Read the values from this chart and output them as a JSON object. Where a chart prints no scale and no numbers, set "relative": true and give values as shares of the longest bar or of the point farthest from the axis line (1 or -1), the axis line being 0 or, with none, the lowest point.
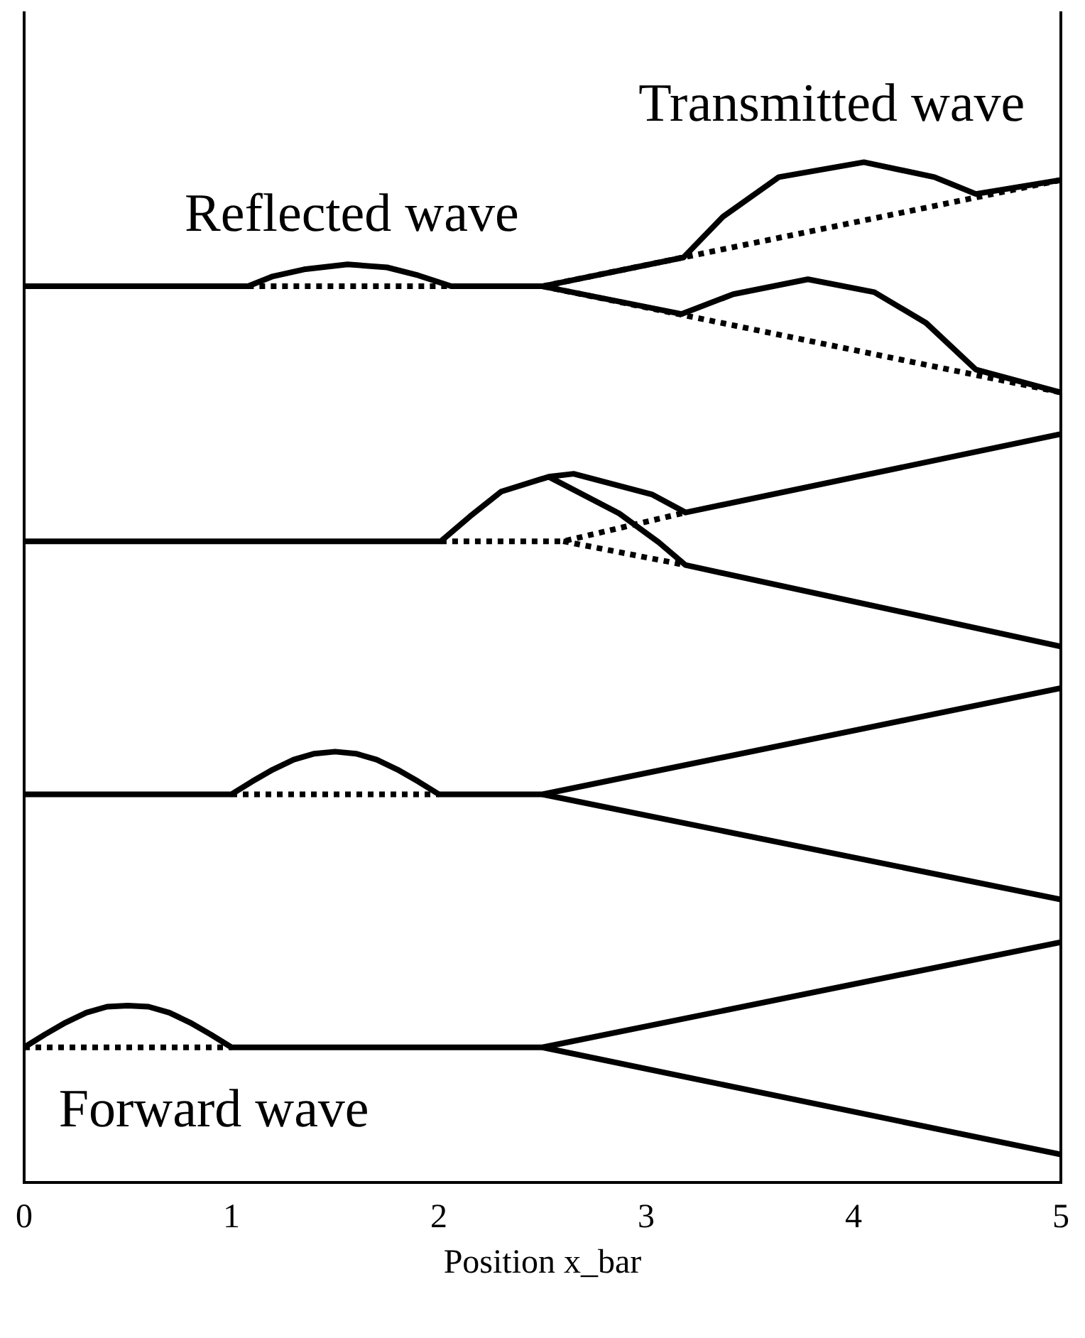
{
  "chart_data": {
    "type": "line",
    "relative": true,
    "xlabel": "Position x_bar",
    "xlim": [
      0,
      5
    ],
    "xticks": [
      0,
      1,
      2,
      3,
      4,
      5
    ],
    "annotations": [
      "Reflected wave",
      "Transmitted wave",
      "Forward wave"
    ],
    "series": [
      {
        "color": "#000000",
        "line_style": "solid",
        "x": [
          0,
          1.08,
          1.2,
          1.35,
          1.56,
          1.75,
          1.9,
          2.06,
          2.5,
          3.18,
          3.37,
          3.64,
          4.05,
          4.39,
          4.59,
          5
        ],
        "values": [
          0.875,
          0.875,
          0.885,
          0.892,
          0.897,
          0.894,
          0.886,
          0.875,
          0.875,
          0.904,
          0.945,
          0.985,
          1,
          0.985,
          0.968,
          0.982
        ]
      },
      {
        "color": "#000000",
        "line_style": "dotted",
        "x": [
          1.08,
          2.06
        ],
        "values": [
          0.875,
          0.875
        ]
      },
      {
        "color": "#000000",
        "line_style": "dotted",
        "x": [
          2.5,
          5
        ],
        "values": [
          0.875,
          0.982
        ]
      },
      {
        "color": "#000000",
        "line_style": "solid",
        "x": [
          2.5,
          3.17,
          3.42,
          3.78,
          4.1,
          4.35,
          4.59,
          5
        ],
        "values": [
          0.875,
          0.847,
          0.867,
          0.882,
          0.869,
          0.838,
          0.791,
          0.768
        ]
      },
      {
        "color": "#000000",
        "line_style": "dotted",
        "x": [
          2.5,
          5
        ],
        "values": [
          0.875,
          0.768
        ]
      },
      {
        "color": "#000000",
        "line_style": "solid",
        "x": [
          0,
          2.01,
          2.15,
          2.3,
          2.53,
          2.65,
          3.03,
          3.19,
          5
        ],
        "values": [
          0.618,
          0.618,
          0.643,
          0.668,
          0.683,
          0.686,
          0.665,
          0.647,
          0.726
        ]
      },
      {
        "color": "#000000",
        "line_style": "solid",
        "x": [
          2.53,
          2.87,
          3.06,
          3.19,
          5
        ],
        "values": [
          0.683,
          0.646,
          0.617,
          0.594,
          0.512
        ]
      },
      {
        "color": "#000000",
        "line_style": "dotted",
        "x": [
          2.01,
          2.6,
          3.19
        ],
        "values": [
          0.618,
          0.618,
          0.647
        ]
      },
      {
        "color": "#000000",
        "line_style": "dotted",
        "x": [
          2.6,
          3.19
        ],
        "values": [
          0.618,
          0.594
        ]
      },
      {
        "color": "#000000",
        "line_style": "solid",
        "x": [
          0,
          1,
          1.1,
          1.2,
          1.3,
          1.4,
          1.5,
          1.6,
          1.7,
          1.8,
          1.9,
          2,
          2.5,
          5
        ],
        "values": [
          0.363,
          0.363,
          0.376,
          0.388,
          0.398,
          0.404,
          0.406,
          0.404,
          0.398,
          0.388,
          0.376,
          0.363,
          0.363,
          0.47
        ]
      },
      {
        "color": "#000000",
        "line_style": "dotted",
        "x": [
          1,
          2
        ],
        "values": [
          0.363,
          0.363
        ]
      },
      {
        "color": "#000000",
        "line_style": "solid",
        "x": [
          2.5,
          5
        ],
        "values": [
          0.363,
          0.257
        ]
      },
      {
        "color": "#000000",
        "line_style": "solid",
        "x": [
          0,
          0.1,
          0.2,
          0.3,
          0.4,
          0.5,
          0.6,
          0.7,
          0.8,
          0.9,
          1,
          2.5,
          5
        ],
        "values": [
          0.108,
          0.121,
          0.133,
          0.143,
          0.149,
          0.15,
          0.149,
          0.143,
          0.133,
          0.121,
          0.108,
          0.108,
          0.214
        ]
      },
      {
        "color": "#000000",
        "line_style": "dotted",
        "x": [
          0,
          1
        ],
        "values": [
          0.108,
          0.108
        ]
      },
      {
        "color": "#000000",
        "line_style": "solid",
        "x": [
          2.5,
          5
        ],
        "values": [
          0.108,
          0
        ]
      }
    ]
  }
}
